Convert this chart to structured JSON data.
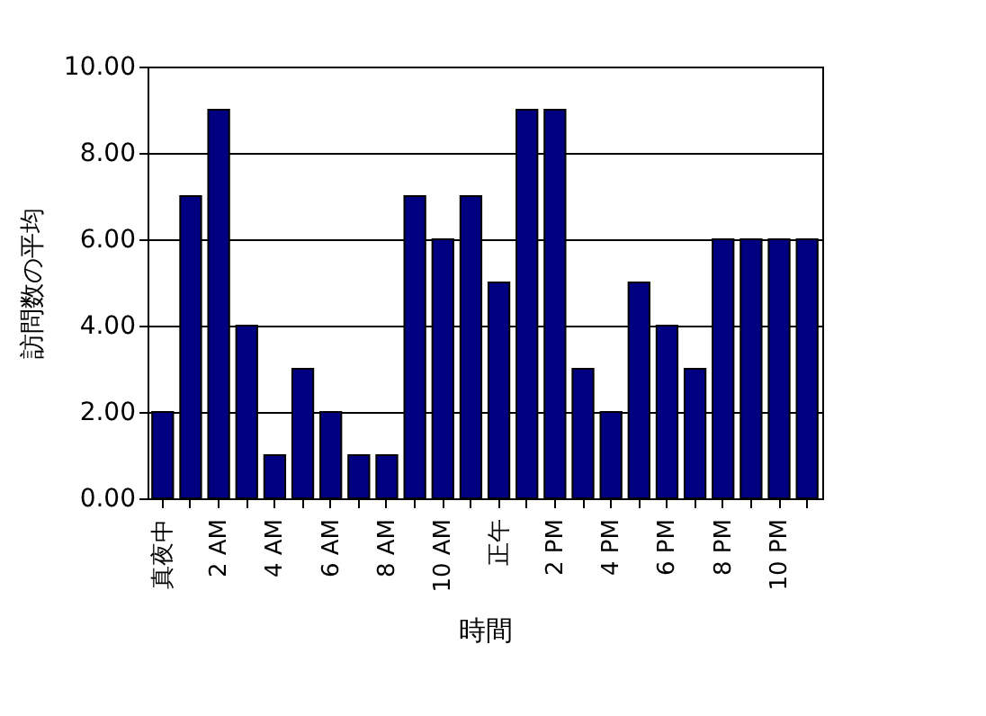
{
  "chart_data": {
    "type": "bar",
    "xlabel": "時間",
    "ylabel": "訪問数の平均",
    "categories": [
      "真夜中",
      null,
      "2 AM",
      null,
      "4 AM",
      null,
      "6 AM",
      null,
      "8 AM",
      null,
      "10 AM",
      null,
      "正午",
      null,
      "2 PM",
      null,
      "4 PM",
      null,
      "6 PM",
      null,
      "8 PM",
      null,
      "10 PM",
      null
    ],
    "values": [
      2,
      7,
      9,
      4,
      1,
      3,
      2,
      1,
      1,
      7,
      6,
      7,
      5,
      9,
      9,
      3,
      2,
      5,
      4,
      3,
      6,
      6,
      6,
      6
    ],
    "color": "#000080",
    "ylim": [
      0,
      10
    ],
    "yticks": [
      {
        "value": 0,
        "label": "0.00"
      },
      {
        "value": 2,
        "label": "2.00"
      },
      {
        "value": 4,
        "label": "4.00"
      },
      {
        "value": 6,
        "label": "6.00"
      },
      {
        "value": 8,
        "label": "8.00"
      },
      {
        "value": 10,
        "label": "10.00"
      }
    ],
    "grid": "y"
  }
}
